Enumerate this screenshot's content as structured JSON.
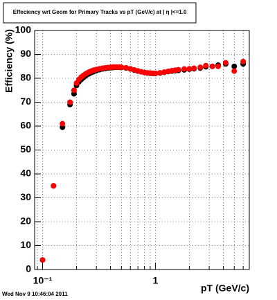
{
  "chart_data": {
    "type": "scatter",
    "title": "Effeciency wrt Geom for Primary Tracks vs pT (GeV/c) at | η |<=1.0",
    "x_label": "pT (GeV/c)",
    "y_label": "Efficiency (%)",
    "footer": "Wed Nov  9 10:46:04 2011",
    "x": [
      0.1,
      0.125,
      0.15,
      0.175,
      0.19,
      0.2,
      0.21,
      0.22,
      0.23,
      0.24,
      0.25,
      0.26,
      0.27,
      0.28,
      0.29,
      0.3,
      0.32,
      0.34,
      0.36,
      0.38,
      0.4,
      0.42,
      0.44,
      0.46,
      0.48,
      0.5,
      0.55,
      0.6,
      0.65,
      0.7,
      0.75,
      0.8,
      0.85,
      0.9,
      0.95,
      1.0,
      1.1,
      1.2,
      1.3,
      1.4,
      1.5,
      1.6,
      1.8,
      2.0,
      2.2,
      2.5,
      2.8,
      3.2,
      3.6,
      4.2,
      5.0,
      6.0
    ],
    "series": [
      {
        "color": "#000000",
        "values": [
          4,
          35,
          59.5,
          69,
          73.5,
          77,
          78.5,
          79.5,
          80.3,
          81,
          81.6,
          82,
          82.4,
          82.7,
          83,
          83.2,
          83.6,
          83.9,
          84.1,
          84.3,
          84.4,
          84.5,
          84.6,
          84.6,
          84.6,
          84.5,
          84.3,
          83.9,
          83.4,
          83,
          82.7,
          82.4,
          82.2,
          82.1,
          82,
          82,
          82.2,
          82.5,
          82.8,
          83,
          83.2,
          83.3,
          83.5,
          83.8,
          84,
          84.3,
          84.8,
          85,
          85.5,
          86,
          85,
          86
        ]
      },
      {
        "color": "#ff0000",
        "values": [
          4,
          35,
          61,
          70,
          75,
          78,
          79.5,
          80.5,
          81.2,
          81.8,
          82.3,
          82.7,
          83,
          83.3,
          83.5,
          83.7,
          84,
          84.2,
          84.4,
          84.5,
          84.6,
          84.7,
          84.7,
          84.7,
          84.7,
          84.6,
          84.4,
          84,
          83.5,
          83.1,
          82.7,
          82.4,
          82.3,
          82.2,
          82.1,
          82.1,
          82.3,
          82.6,
          82.9,
          83.2,
          83.4,
          83.6,
          83.9,
          84,
          84.2,
          84.6,
          85.3,
          85,
          85,
          86.5,
          83,
          87
        ]
      }
    ],
    "xlog": true,
    "xlim": [
      0.085,
      6.8
    ],
    "xticks": [
      {
        "value": 0.1,
        "label": "10⁻¹"
      },
      1
    ],
    "xminor_ticks": [
      0.09,
      0.2,
      0.3,
      0.4,
      0.5,
      0.6,
      0.7,
      0.8,
      0.9,
      2,
      3,
      4,
      5,
      6
    ],
    "ylim": [
      0,
      100
    ],
    "yticks": [
      0,
      10,
      20,
      30,
      40,
      50,
      60,
      70,
      80,
      90,
      100
    ],
    "grid": true
  }
}
